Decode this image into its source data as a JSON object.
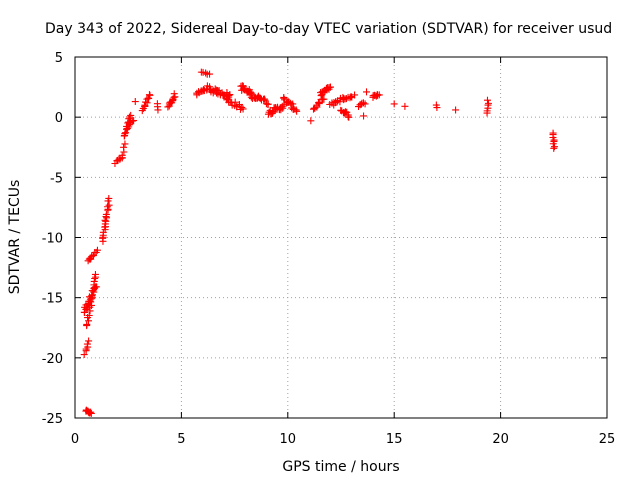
{
  "chart_data": {
    "type": "scatter",
    "title": "Day 343 of 2022, Sidereal Day-to-day VTEC variation (SDTVAR) for receiver usud",
    "xlabel": "GPS time / hours",
    "ylabel": "SDTVAR / TECUs",
    "xlim": [
      0,
      25
    ],
    "ylim": [
      -25,
      5
    ],
    "xticks": [
      0,
      5,
      10,
      15,
      20,
      25
    ],
    "yticks": [
      -25,
      -20,
      -15,
      -10,
      -5,
      0,
      5
    ],
    "grid": true,
    "marker": "plus",
    "color": "#ff0000",
    "segments": [
      {
        "x0": 0.5,
        "x1": 0.75,
        "y0": -24.4,
        "y1": -24.6,
        "n": 12,
        "jitter": 0.15
      },
      {
        "x0": 0.45,
        "x1": 0.65,
        "y0": -19.7,
        "y1": -18.6,
        "n": 6,
        "jitter": 0.2
      },
      {
        "x0": 0.4,
        "x1": 1.0,
        "y0": -16.2,
        "y1": -14.0,
        "n": 22,
        "jitter": 0.5
      },
      {
        "x0": 0.55,
        "x1": 1.0,
        "y0": -17.5,
        "y1": -13.0,
        "n": 18,
        "jitter": 0.4
      },
      {
        "x0": 0.6,
        "x1": 0.85,
        "y0": -12.0,
        "y1": -11.5,
        "n": 6,
        "jitter": 0.2
      },
      {
        "x0": 0.85,
        "x1": 1.05,
        "y0": -11.5,
        "y1": -11.0,
        "n": 4,
        "jitter": 0.2
      },
      {
        "x0": 1.3,
        "x1": 1.6,
        "y0": -10.3,
        "y1": -6.9,
        "n": 20,
        "jitter": 0.3
      },
      {
        "x0": 1.9,
        "x1": 2.2,
        "y0": -3.8,
        "y1": -3.4,
        "n": 6,
        "jitter": 0.2
      },
      {
        "x0": 2.2,
        "x1": 2.35,
        "y0": -3.4,
        "y1": -2.2,
        "n": 5,
        "jitter": 0.2
      },
      {
        "x0": 2.3,
        "x1": 2.6,
        "y0": -1.6,
        "y1": 0.0,
        "n": 14,
        "jitter": 0.3
      },
      {
        "x0": 2.5,
        "x1": 2.75,
        "y0": -0.8,
        "y1": -0.2,
        "n": 5,
        "jitter": 0.2
      },
      {
        "x0": 2.8,
        "x1": 2.8,
        "y0": 1.3,
        "y1": 1.3,
        "n": 1,
        "jitter": 0
      },
      {
        "x0": 3.2,
        "x1": 3.5,
        "y0": 0.5,
        "y1": 1.9,
        "n": 12,
        "jitter": 0.3
      },
      {
        "x0": 3.9,
        "x1": 3.9,
        "y0": 1.2,
        "y1": 0.6,
        "n": 3,
        "jitter": 0.2
      },
      {
        "x0": 4.4,
        "x1": 4.7,
        "y0": 0.9,
        "y1": 1.8,
        "n": 12,
        "jitter": 0.3
      },
      {
        "x0": 5.7,
        "x1": 6.3,
        "y0": 1.9,
        "y1": 2.5,
        "n": 14,
        "jitter": 0.3
      },
      {
        "x0": 5.9,
        "x1": 6.3,
        "y0": 3.7,
        "y1": 3.6,
        "n": 5,
        "jitter": 0.15
      },
      {
        "x0": 6.3,
        "x1": 7.3,
        "y0": 2.3,
        "y1": 1.8,
        "n": 26,
        "jitter": 0.4
      },
      {
        "x0": 7.1,
        "x1": 7.9,
        "y0": 1.5,
        "y1": 0.7,
        "n": 16,
        "jitter": 0.4
      },
      {
        "x0": 7.8,
        "x1": 8.6,
        "y0": 2.5,
        "y1": 1.5,
        "n": 28,
        "jitter": 0.5
      },
      {
        "x0": 8.6,
        "x1": 9.1,
        "y0": 1.8,
        "y1": 1.1,
        "n": 10,
        "jitter": 0.3
      },
      {
        "x0": 9.1,
        "x1": 9.8,
        "y0": 0.4,
        "y1": 0.9,
        "n": 22,
        "jitter": 0.4
      },
      {
        "x0": 9.8,
        "x1": 10.4,
        "y0": 1.5,
        "y1": 0.6,
        "n": 16,
        "jitter": 0.4
      },
      {
        "x0": 11.1,
        "x1": 11.1,
        "y0": -0.3,
        "y1": -0.3,
        "n": 1,
        "jitter": 0
      },
      {
        "x0": 11.2,
        "x1": 11.7,
        "y0": 0.7,
        "y1": 1.5,
        "n": 12,
        "jitter": 0.4
      },
      {
        "x0": 11.5,
        "x1": 12.0,
        "y0": 1.9,
        "y1": 2.5,
        "n": 16,
        "jitter": 0.3
      },
      {
        "x0": 12.0,
        "x1": 12.6,
        "y0": 1.0,
        "y1": 1.6,
        "n": 14,
        "jitter": 0.3
      },
      {
        "x0": 12.5,
        "x1": 12.9,
        "y0": 0.6,
        "y1": 0.1,
        "n": 10,
        "jitter": 0.3
      },
      {
        "x0": 12.6,
        "x1": 13.1,
        "y0": 1.5,
        "y1": 1.8,
        "n": 8,
        "jitter": 0.2
      },
      {
        "x0": 13.3,
        "x1": 13.6,
        "y0": 0.9,
        "y1": 1.2,
        "n": 6,
        "jitter": 0.2
      },
      {
        "x0": 13.6,
        "x1": 13.6,
        "y0": 0.1,
        "y1": 0.1,
        "n": 1,
        "jitter": 0
      },
      {
        "x0": 13.7,
        "x1": 13.7,
        "y0": 2.1,
        "y1": 2.1,
        "n": 1,
        "jitter": 0
      },
      {
        "x0": 14.0,
        "x1": 14.3,
        "y0": 1.7,
        "y1": 1.9,
        "n": 8,
        "jitter": 0.2
      },
      {
        "x0": 15.0,
        "x1": 15.0,
        "y0": 1.1,
        "y1": 1.1,
        "n": 1,
        "jitter": 0
      },
      {
        "x0": 15.5,
        "x1": 15.5,
        "y0": 0.9,
        "y1": 0.9,
        "n": 1,
        "jitter": 0
      },
      {
        "x0": 17.0,
        "x1": 17.0,
        "y0": 1.0,
        "y1": 0.8,
        "n": 2,
        "jitter": 0.1
      },
      {
        "x0": 17.9,
        "x1": 17.9,
        "y0": 0.6,
        "y1": 0.6,
        "n": 1,
        "jitter": 0
      },
      {
        "x0": 19.4,
        "x1": 19.4,
        "y0": 1.4,
        "y1": 0.3,
        "n": 6,
        "jitter": 0.1
      },
      {
        "x0": 22.5,
        "x1": 22.5,
        "y0": -1.3,
        "y1": -2.6,
        "n": 8,
        "jitter": 0.1
      }
    ]
  }
}
